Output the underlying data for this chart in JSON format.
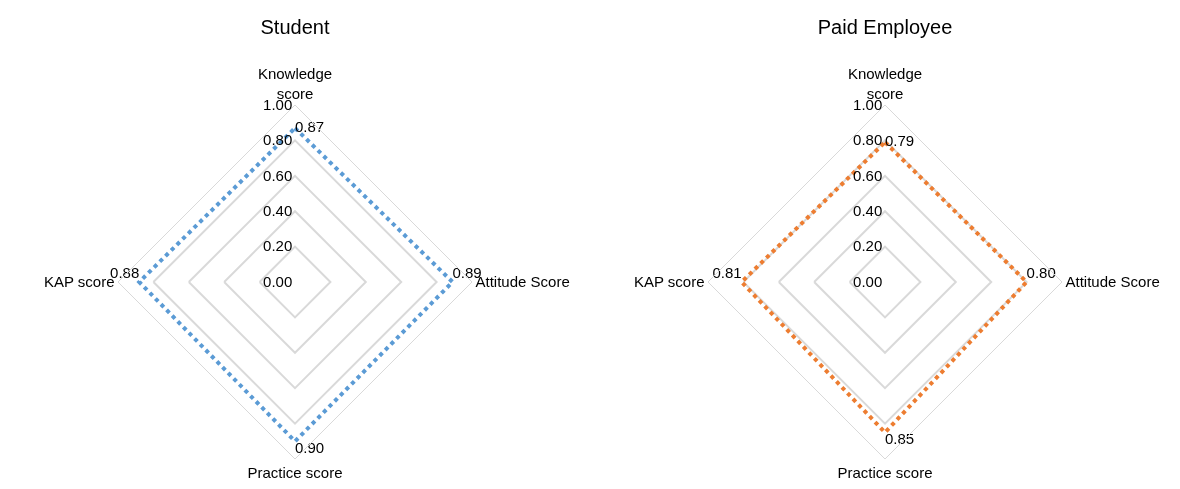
{
  "chart_data": [
    {
      "type": "radar",
      "title": "Student",
      "categories": [
        "Knowledge score",
        "Attitude Score",
        "Practice score",
        "KAP score"
      ],
      "series": [
        {
          "color": "#5b9bd5",
          "values": [
            0.87,
            0.89,
            0.9,
            0.88
          ],
          "value_labels": [
            "0.87",
            "0.89",
            "0.90",
            "0.88"
          ]
        }
      ],
      "ylim": [
        0,
        1
      ],
      "yticks": [
        {
          "value": 0,
          "label": "0.00"
        },
        {
          "value": 0.2,
          "label": "0.20"
        },
        {
          "value": 0.4,
          "label": "0.40"
        },
        {
          "value": 0.6,
          "label": "0.60"
        },
        {
          "value": 0.8,
          "label": "0.80"
        },
        {
          "value": 1,
          "label": "1.00"
        }
      ],
      "grid": true,
      "legend": false,
      "line_style": "dotted",
      "marker": "none"
    },
    {
      "type": "radar",
      "title": "Paid Employee",
      "categories": [
        "Knowledge score",
        "Attitude Score",
        "Practice score",
        "KAP score"
      ],
      "series": [
        {
          "color": "#ed7d31",
          "values": [
            0.79,
            0.8,
            0.85,
            0.81
          ],
          "value_labels": [
            "0.79",
            "0.80",
            "0.85",
            "0.81"
          ]
        }
      ],
      "ylim": [
        0,
        1
      ],
      "yticks": [
        {
          "value": 0,
          "label": "0.00"
        },
        {
          "value": 0.2,
          "label": "0.20"
        },
        {
          "value": 0.4,
          "label": "0.40"
        },
        {
          "value": 0.6,
          "label": "0.60"
        },
        {
          "value": 0.8,
          "label": "0.80"
        },
        {
          "value": 1,
          "label": "1.00"
        }
      ],
      "grid": true,
      "legend": false,
      "line_style": "dotted",
      "marker": "none"
    }
  ]
}
